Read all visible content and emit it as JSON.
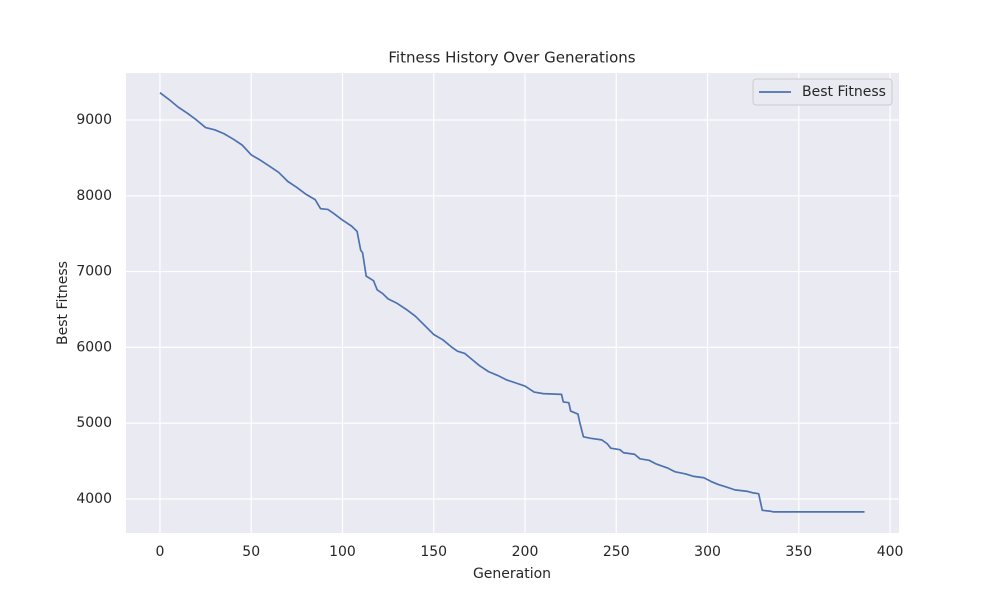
{
  "chart_data": {
    "type": "line",
    "title": "Fitness History Over Generations",
    "x_label": "Generation",
    "y_label": "Best Fitness",
    "x": [
      0,
      5,
      10,
      15,
      20,
      25,
      30,
      35,
      40,
      45,
      50,
      55,
      60,
      65,
      70,
      75,
      80,
      85,
      88,
      92,
      95,
      100,
      105,
      108,
      110,
      111,
      113,
      117,
      119,
      122,
      125,
      130,
      135,
      140,
      145,
      150,
      155,
      160,
      163,
      167,
      170,
      175,
      180,
      185,
      190,
      195,
      200,
      205,
      210,
      220,
      221,
      224,
      225,
      229,
      230,
      232,
      236,
      242,
      245,
      247,
      252,
      254,
      260,
      263,
      268,
      272,
      278,
      282,
      288,
      292,
      298,
      302,
      306,
      310,
      315,
      322,
      325,
      328,
      330,
      334,
      336,
      386
    ],
    "series": [
      {
        "name": "Best Fitness",
        "color": "#4c72b0",
        "values": [
          9360,
          9270,
          9170,
          9090,
          9000,
          8900,
          8870,
          8820,
          8750,
          8670,
          8540,
          8470,
          8390,
          8310,
          8190,
          8110,
          8020,
          7950,
          7830,
          7820,
          7770,
          7680,
          7600,
          7530,
          7280,
          7250,
          6940,
          6880,
          6760,
          6710,
          6640,
          6580,
          6500,
          6410,
          6290,
          6170,
          6100,
          6000,
          5950,
          5920,
          5860,
          5760,
          5680,
          5630,
          5570,
          5530,
          5490,
          5410,
          5390,
          5380,
          5280,
          5270,
          5160,
          5120,
          5010,
          4820,
          4800,
          4780,
          4730,
          4670,
          4650,
          4610,
          4590,
          4530,
          4510,
          4460,
          4410,
          4360,
          4330,
          4300,
          4280,
          4230,
          4190,
          4160,
          4120,
          4100,
          4080,
          4070,
          3850,
          3840,
          3830,
          3830
        ]
      }
    ],
    "xlim": [
      -18.6,
      404.9
    ],
    "ylim": [
      3551,
      9620
    ],
    "xticks": [
      0,
      50,
      100,
      150,
      200,
      250,
      300,
      350,
      400
    ],
    "yticks": [
      4000,
      5000,
      6000,
      7000,
      8000,
      9000
    ],
    "grid": true,
    "legend": "upper-right"
  }
}
